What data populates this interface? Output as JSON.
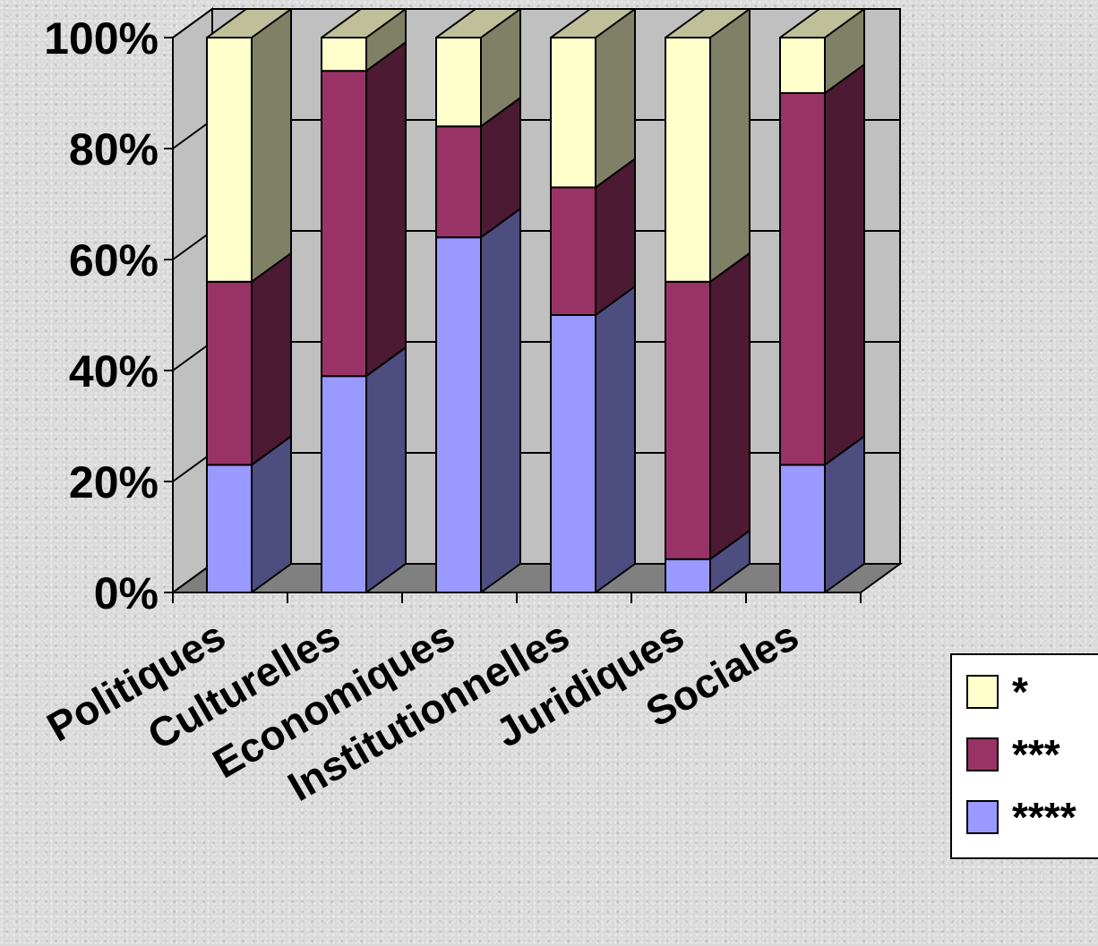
{
  "chart_data": {
    "type": "bar",
    "stacked": true,
    "percent_stacked": true,
    "three_d": true,
    "title": "",
    "xlabel": "",
    "ylabel": "",
    "ylim": [
      0,
      100
    ],
    "y_ticks": [
      "0%",
      "20%",
      "40%",
      "60%",
      "80%",
      "100%"
    ],
    "grid": true,
    "legend_position": "right",
    "categories": [
      "Politiques",
      "Culturelles",
      "Economiques",
      "Institutionnelles",
      "Juridiques",
      "Sociales"
    ],
    "series": [
      {
        "name": "****",
        "values": [
          23,
          39,
          64,
          50,
          6,
          23
        ],
        "color": "#9999ff"
      },
      {
        "name": "***",
        "values": [
          33,
          55,
          20,
          23,
          50,
          67
        ],
        "color": "#993366"
      },
      {
        "name": "*",
        "values": [
          44,
          6,
          16,
          27,
          44,
          10
        ],
        "color": "#ffffcc"
      }
    ],
    "legend_order": [
      "*",
      "***",
      "****"
    ],
    "colors": {
      "walls": "#c0c0c0",
      "floor": "#808080",
      "gridline": "#000000"
    }
  }
}
